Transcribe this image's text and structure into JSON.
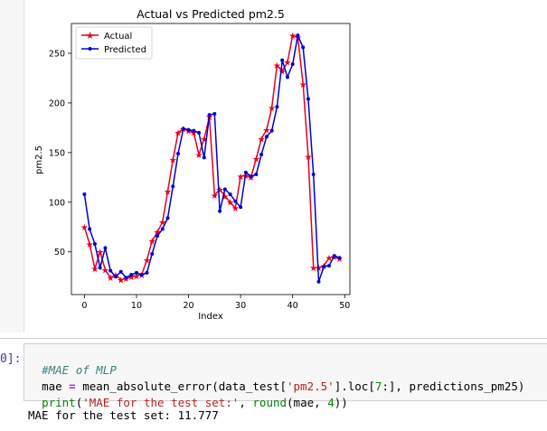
{
  "notebook": {
    "code_cell": {
      "prompt": "0]:",
      "line1": "#MAE of MLP",
      "line2_parts": [
        "mae",
        " = ",
        "mean_absolute_error(data_test[",
        "'pm2.5'",
        "].loc[",
        "7",
        ":], predictions_pm25)"
      ],
      "line3_parts": [
        "print",
        "(",
        "'MAE for the test set:'",
        ", ",
        "round",
        "(mae, ",
        "4",
        "))"
      ]
    },
    "output_text": "MAE for the test set: 11.777"
  },
  "chart_data": {
    "type": "line",
    "title": "Actual vs Predicted pm2.5",
    "xlabel": "Index",
    "ylabel": "pm2.5",
    "xlim": [
      -2.5,
      51
    ],
    "ylim": [
      7,
      280
    ],
    "xticks": [
      0,
      10,
      20,
      30,
      40,
      50
    ],
    "yticks": [
      50,
      100,
      150,
      200,
      250
    ],
    "grid": false,
    "legend_position": "top-left",
    "x": [
      0,
      1,
      2,
      3,
      4,
      5,
      6,
      7,
      8,
      9,
      10,
      11,
      12,
      13,
      14,
      15,
      16,
      17,
      18,
      19,
      20,
      21,
      22,
      23,
      24,
      25,
      26,
      27,
      28,
      29,
      30,
      31,
      32,
      33,
      34,
      35,
      36,
      37,
      38,
      39,
      40,
      41,
      42,
      43,
      44,
      45,
      46,
      47,
      48,
      49
    ],
    "series": [
      {
        "name": "Actual",
        "color": "#e8001c",
        "marker": "star",
        "values": [
          75,
          58,
          33,
          50,
          32,
          24,
          27,
          22,
          23,
          25,
          26,
          27,
          42,
          61,
          70,
          80,
          111,
          143,
          170,
          174,
          172,
          170,
          148,
          164,
          186,
          107,
          113,
          106,
          100,
          94,
          126,
          127,
          125,
          144,
          164,
          173,
          195,
          238,
          232,
          241,
          268,
          266,
          219,
          146,
          34,
          34,
          36,
          44,
          45,
          43
        ]
      },
      {
        "name": "Predicted",
        "color": "#0000cc",
        "marker": "dot",
        "values": [
          108,
          73,
          58,
          34,
          54,
          31,
          25,
          30,
          24,
          27,
          29,
          27,
          29,
          48,
          66,
          73,
          84,
          116,
          149,
          174,
          173,
          172,
          170,
          145,
          188,
          189,
          91,
          113,
          108,
          101,
          95,
          130,
          126,
          128,
          148,
          166,
          172,
          196,
          243,
          226,
          239,
          268,
          256,
          204,
          128,
          20,
          35,
          36,
          46,
          44
        ]
      }
    ]
  }
}
